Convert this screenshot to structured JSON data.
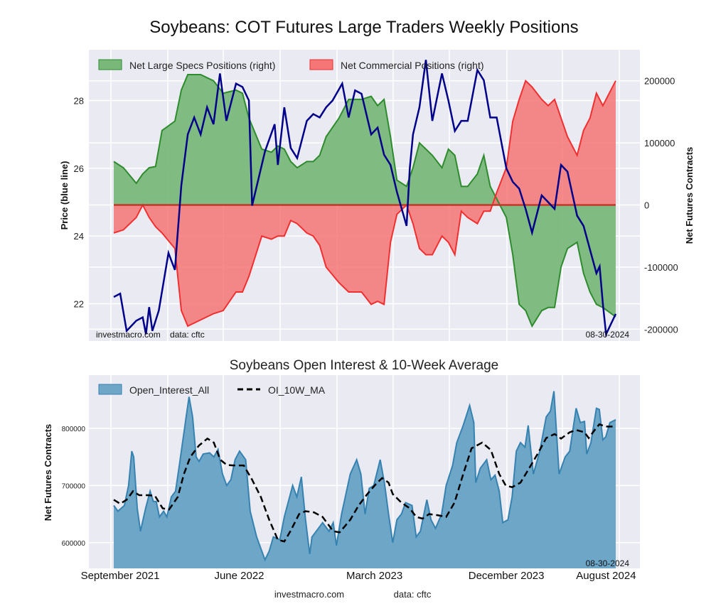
{
  "chart_data": [
    {
      "type": "area",
      "title": "Soybeans: COT Futures Large Traders Weekly Positions",
      "ylabel_left": "Price (blue line)",
      "ylabel_right": "Net Futures Contracts",
      "x_unit": "weeks since Sep 2021",
      "ylim_left": [
        20.9,
        29.5
      ],
      "ylim_right": [
        -219000,
        250000
      ],
      "left_ticks": [
        22,
        24,
        26,
        28
      ],
      "right_ticks": [
        -200000,
        -100000,
        0,
        100000,
        200000
      ],
      "grid": true,
      "legend_position": "top-left",
      "watermark_left": "investmacro.com    data: cftc",
      "date_label": "08-30-2024",
      "legend": [
        "Net Large Specs Positions (right)",
        "Net Commercial Positions (right)"
      ],
      "colors": {
        "specs_fill": "#7ab87a",
        "specs_line": "#2e8b2e",
        "comm_fill": "#f47676",
        "comm_line": "#f03030",
        "price_line": "#00008b",
        "zero_line": "#c0392b"
      },
      "positions_weeks": [
        0,
        3,
        7,
        9,
        11,
        13,
        15,
        19,
        21,
        23,
        27,
        31,
        34,
        38,
        40,
        42,
        46,
        49,
        51,
        53,
        55,
        57,
        60,
        62,
        64,
        66,
        70,
        73,
        77,
        80,
        82,
        84,
        86,
        88,
        91,
        93,
        95,
        97,
        99,
        102,
        104,
        106,
        108,
        110,
        113,
        115,
        117,
        119,
        122,
        124,
        126,
        128,
        130,
        133,
        135,
        137,
        139,
        141,
        144,
        146,
        148,
        150,
        152,
        156
      ],
      "series": [
        {
          "name": "Net Large Specs Positions (right)",
          "axis": "right",
          "values": [
            70000,
            60000,
            35000,
            50000,
            60000,
            62000,
            120000,
            135000,
            185000,
            210000,
            210000,
            200000,
            180000,
            185000,
            180000,
            140000,
            90000,
            85000,
            95000,
            90000,
            70000,
            60000,
            70000,
            70000,
            80000,
            110000,
            140000,
            170000,
            170000,
            175000,
            160000,
            170000,
            110000,
            40000,
            30000,
            60000,
            100000,
            90000,
            80000,
            60000,
            90000,
            80000,
            30000,
            30000,
            50000,
            80000,
            30000,
            10000,
            -20000,
            -80000,
            -160000,
            -170000,
            -195000,
            -170000,
            -165000,
            -165000,
            -100000,
            -70000,
            -60000,
            -110000,
            -140000,
            -160000,
            -165000,
            -180000
          ]
        },
        {
          "name": "Net Commercial Positions (right)",
          "axis": "right",
          "values": [
            -45000,
            -40000,
            -20000,
            0,
            -20000,
            -35000,
            -45000,
            -70000,
            -170000,
            -195000,
            -185000,
            -175000,
            -170000,
            -140000,
            -140000,
            -115000,
            -50000,
            -55000,
            -50000,
            -50000,
            -25000,
            -30000,
            -45000,
            -50000,
            -65000,
            -100000,
            -125000,
            -140000,
            -140000,
            -160000,
            -155000,
            -160000,
            -60000,
            -15000,
            0,
            -30000,
            -70000,
            -80000,
            -80000,
            -50000,
            -60000,
            -80000,
            -10000,
            -20000,
            -30000,
            -10000,
            -10000,
            20000,
            60000,
            135000,
            170000,
            200000,
            190000,
            170000,
            160000,
            170000,
            140000,
            110000,
            80000,
            120000,
            140000,
            180000,
            160000,
            200000
          ]
        },
        {
          "name": "Price",
          "axis": "left",
          "weeks": [
            0,
            2,
            4,
            7,
            9,
            10,
            11,
            12,
            14,
            17,
            19,
            21,
            23,
            25,
            27,
            29,
            31,
            33,
            35,
            38,
            40,
            42,
            43,
            45,
            47,
            50,
            51,
            53,
            55,
            57,
            60,
            62,
            64,
            66,
            68,
            71,
            73,
            75,
            77,
            80,
            82,
            84,
            86,
            88,
            91,
            92,
            93,
            95,
            97,
            99,
            102,
            104,
            106,
            108,
            110,
            113,
            115,
            117,
            119,
            122,
            124,
            126,
            128,
            130,
            133,
            135,
            137,
            139,
            141,
            144,
            146,
            148,
            150,
            151,
            152,
            153,
            156
          ],
          "values": [
            22.2,
            22.3,
            21.2,
            21.5,
            21.6,
            21.1,
            21.9,
            21.2,
            21.8,
            23.5,
            23.0,
            25.5,
            27.0,
            27.5,
            27.0,
            27.8,
            27.3,
            28.8,
            27.4,
            28.5,
            28.4,
            28.0,
            24.9,
            25.7,
            26.5,
            27.3,
            26.1,
            27.8,
            26.6,
            26.3,
            27.4,
            27.6,
            27.5,
            27.8,
            28.0,
            28.5,
            27.5,
            28.3,
            28.2,
            27.0,
            27.2,
            26.4,
            26.1,
            25.3,
            24.3,
            26.0,
            27.0,
            27.8,
            29.2,
            27.4,
            28.8,
            28.0,
            27.1,
            27.4,
            27.4,
            28.9,
            28.6,
            27.5,
            27.5,
            26.0,
            25.6,
            25.4,
            24.8,
            24.1,
            25.2,
            25.0,
            24.8,
            26.1,
            25.9,
            24.6,
            24.3,
            23.6,
            22.9,
            23.1,
            22.0,
            21.1,
            21.7
          ]
        }
      ]
    },
    {
      "type": "area",
      "title": "Soybeans Open Interest & 10-Week Average",
      "ylabel": "Net Futures Contracts",
      "x_unit": "weeks since Sep 2021",
      "ylim": [
        555000,
        893000
      ],
      "y_ticks": [
        600000,
        700000,
        800000
      ],
      "x_tick_labels": [
        {
          "label": "September 2021",
          "week": 2
        },
        {
          "label": "June 2022",
          "week": 39
        },
        {
          "label": "March 2023",
          "week": 81
        },
        {
          "label": "December 2023",
          "week": 122
        },
        {
          "label": "August 2024",
          "week": 153
        }
      ],
      "grid": true,
      "legend_position": "top-left",
      "legend": [
        "Open_Interest_All",
        "OI_10W_MA"
      ],
      "date_label": "08-30-2024",
      "colors": {
        "oi_fill": "#6ea6c8",
        "oi_line": "#3682b0",
        "ma_line": "#000000"
      },
      "series": [
        {
          "name": "Open_Interest_All",
          "weeks": [
            0,
            1.3,
            3.3,
            4.6,
            5.6,
            6.2,
            7.3,
            8.3,
            9.9,
            11.3,
            12.3,
            13.2,
            14.2,
            15.5,
            16.5,
            17.9,
            19.2,
            20.5,
            22.5,
            23.4,
            24.5,
            25.6,
            26.5,
            27.8,
            29.8,
            31.1,
            32.4,
            33.8,
            35.1,
            36.4,
            37.7,
            39.1,
            41,
            42.4,
            44.4,
            45.7,
            47,
            48.3,
            49.6,
            51.6,
            53,
            55.6,
            56.9,
            58.3,
            59.6,
            60.9,
            61.6,
            63.6,
            64.9,
            66.9,
            68.2,
            69.2,
            70.8,
            73.5,
            75.5,
            76.8,
            78.1,
            79.4,
            80.8,
            82.8,
            84.1,
            85.4,
            86.7,
            88,
            89.4,
            90.7,
            92.7,
            94,
            95.3,
            97.3,
            98.6,
            100,
            101.9,
            103.3,
            105.3,
            106.6,
            108.6,
            110.6,
            111.9,
            112.5,
            113.9,
            115.9,
            117.2,
            118.5,
            119.8,
            120.9,
            122.5,
            123.8,
            125.1,
            126.4,
            127.8,
            128.8,
            130.4,
            132.4,
            134.4,
            135.7,
            136.8,
            138.4,
            140.3,
            141.7,
            143.7,
            145,
            146.3,
            147,
            148.3,
            150,
            150.9,
            152,
            152.9,
            154.2,
            156
          ],
          "values": [
            665000,
            655000,
            665000,
            700000,
            760000,
            750000,
            660000,
            620000,
            660000,
            690000,
            672000,
            672000,
            645000,
            655000,
            645000,
            680000,
            690000,
            740000,
            820000,
            855000,
            820000,
            750000,
            742000,
            755000,
            757000,
            750000,
            763000,
            720000,
            700000,
            710000,
            745000,
            760000,
            745000,
            655000,
            610000,
            590000,
            570000,
            585000,
            610000,
            605000,
            645000,
            700000,
            680000,
            715000,
            640000,
            580000,
            610000,
            625000,
            635000,
            620000,
            635000,
            595000,
            650000,
            720000,
            745000,
            720000,
            650000,
            695000,
            700000,
            745000,
            705000,
            650000,
            600000,
            640000,
            650000,
            670000,
            665000,
            610000,
            620000,
            675000,
            640000,
            625000,
            650000,
            700000,
            735000,
            775000,
            805000,
            840000,
            810000,
            705000,
            730000,
            745000,
            710000,
            718000,
            690000,
            635000,
            640000,
            680000,
            760000,
            775000,
            767000,
            805000,
            720000,
            760000,
            820000,
            830000,
            865000,
            720000,
            750000,
            760000,
            835000,
            810000,
            812000,
            755000,
            775000,
            835000,
            833000,
            780000,
            785000,
            810000,
            815000
          ]
        },
        {
          "name": "OI_10W_MA",
          "weeks": [
            0,
            2,
            4,
            6,
            7.9,
            10.6,
            12.8,
            15.2,
            17.2,
            19.9,
            21.8,
            23.8,
            26.5,
            29.1,
            31.1,
            33.1,
            35.1,
            37.1,
            40.4,
            43,
            45.7,
            48.3,
            51,
            53,
            54.9,
            57.6,
            59.6,
            62.2,
            64.9,
            68.2,
            70.2,
            73.5,
            76.1,
            78.8,
            81.4,
            83.4,
            85.4,
            86.7,
            89.4,
            92,
            94,
            96,
            98,
            100.6,
            103.3,
            105.9,
            108.6,
            111.2,
            114.5,
            117.2,
            119.8,
            121.8,
            123.8,
            126.4,
            129.1,
            131.7,
            134.4,
            137,
            139,
            141.7,
            143.7,
            146.3,
            147.6,
            149.6,
            150.9,
            152.9,
            156
          ],
          "values": [
            675000,
            668000,
            675000,
            690000,
            683000,
            683000,
            682000,
            660000,
            658000,
            680000,
            720000,
            750000,
            770000,
            782000,
            775000,
            745000,
            736000,
            735000,
            735000,
            710000,
            680000,
            640000,
            605000,
            602000,
            620000,
            650000,
            655000,
            653000,
            645000,
            620000,
            618000,
            640000,
            665000,
            685000,
            702000,
            713000,
            705000,
            685000,
            670000,
            660000,
            645000,
            642000,
            650000,
            648000,
            645000,
            670000,
            720000,
            765000,
            775000,
            762000,
            720000,
            700000,
            697000,
            705000,
            730000,
            755000,
            783000,
            790000,
            782000,
            793000,
            797000,
            793000,
            783000,
            798000,
            807000,
            803000,
            803000
          ]
        }
      ]
    }
  ],
  "footer": {
    "site": "investmacro.com",
    "source": "data: cftc"
  }
}
